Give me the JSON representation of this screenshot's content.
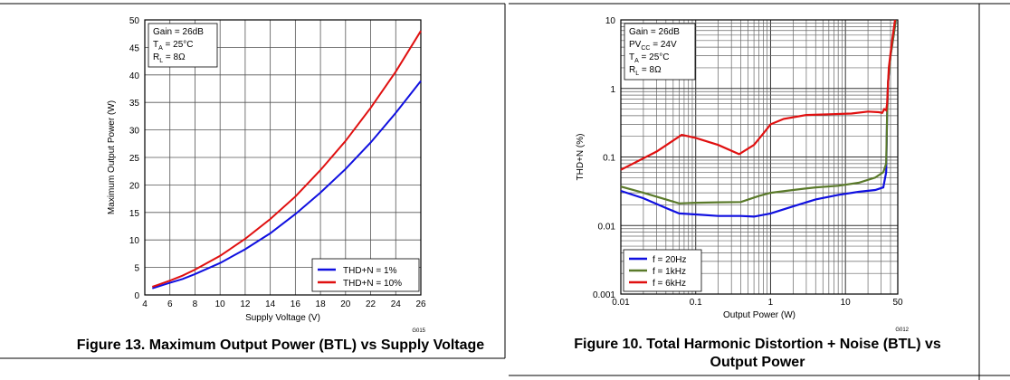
{
  "chart_data": [
    {
      "type": "line",
      "xlabel": "Supply Voltage (V)",
      "ylabel": "Maximum Output Power (W)",
      "xlim": [
        4,
        26
      ],
      "ylim": [
        0,
        50
      ],
      "xticks": [
        4,
        6,
        8,
        10,
        12,
        14,
        16,
        18,
        20,
        22,
        24,
        26
      ],
      "yticks": [
        0,
        5,
        10,
        15,
        20,
        25,
        30,
        35,
        40,
        45,
        50
      ],
      "grid": true,
      "legend_position": "bottom-right",
      "conditions": [
        "Gain = 26dB",
        "T_A = 25°C",
        "R_L = 8Ω"
      ],
      "code": "G015",
      "series": [
        {
          "name": "THD+N = 1%",
          "color": "#1010e0",
          "points": [
            [
              4.6,
              1.2
            ],
            [
              5,
              1.5
            ],
            [
              6,
              2.2
            ],
            [
              7,
              2.9
            ],
            [
              8,
              3.8
            ],
            [
              10,
              5.8
            ],
            [
              12,
              8.3
            ],
            [
              14,
              11.2
            ],
            [
              16,
              14.7
            ],
            [
              18,
              18.6
            ],
            [
              20,
              22.9
            ],
            [
              22,
              27.7
            ],
            [
              24,
              33.1
            ],
            [
              26,
              38.9
            ]
          ]
        },
        {
          "name": "THD+N = 10%",
          "color": "#e01010",
          "points": [
            [
              4.6,
              1.5
            ],
            [
              5,
              1.8
            ],
            [
              6,
              2.6
            ],
            [
              7,
              3.5
            ],
            [
              8,
              4.6
            ],
            [
              10,
              7.1
            ],
            [
              12,
              10.2
            ],
            [
              14,
              13.8
            ],
            [
              16,
              17.9
            ],
            [
              18,
              22.7
            ],
            [
              20,
              28.0
            ],
            [
              22,
              34.0
            ],
            [
              24,
              40.6
            ],
            [
              26,
              48.0
            ]
          ]
        }
      ]
    },
    {
      "type": "line",
      "xlabel": "Output Power (W)",
      "ylabel": "THD+N (%)",
      "xscale": "log",
      "yscale": "log",
      "xlim": [
        0.01,
        50
      ],
      "ylim": [
        0.001,
        10
      ],
      "xtick_labels": [
        "0.01",
        "0.1",
        "1",
        "10",
        "50"
      ],
      "xtick_values": [
        0.01,
        0.1,
        1,
        10,
        50
      ],
      "ytick_labels": [
        "0.001",
        "0.01",
        "0.1",
        "1",
        "10"
      ],
      "ytick_values": [
        0.001,
        0.01,
        0.1,
        1,
        10
      ],
      "grid": true,
      "legend_position": "bottom-left",
      "conditions": [
        "Gain = 26dB",
        "PV_CC = 24V",
        "T_A = 25°C",
        "R_L = 8Ω"
      ],
      "code": "G012",
      "series": [
        {
          "name": "f = 20Hz",
          "color": "#1010e0",
          "points": [
            [
              0.01,
              0.032
            ],
            [
              0.02,
              0.025
            ],
            [
              0.04,
              0.018
            ],
            [
              0.06,
              0.015
            ],
            [
              0.1,
              0.0145
            ],
            [
              0.2,
              0.0138
            ],
            [
              0.4,
              0.0138
            ],
            [
              0.6,
              0.0135
            ],
            [
              1,
              0.015
            ],
            [
              2,
              0.019
            ],
            [
              4,
              0.024
            ],
            [
              8,
              0.028
            ],
            [
              15,
              0.031
            ],
            [
              25,
              0.033
            ],
            [
              32,
              0.036
            ],
            [
              35,
              0.06
            ],
            [
              36,
              0.4
            ],
            [
              37,
              1.2
            ],
            [
              40,
              3.0
            ],
            [
              45,
              7.0
            ],
            [
              47,
              10.0
            ]
          ]
        },
        {
          "name": "f = 1kHz",
          "color": "#5a7a2a",
          "points": [
            [
              0.01,
              0.037
            ],
            [
              0.02,
              0.03
            ],
            [
              0.04,
              0.024
            ],
            [
              0.06,
              0.021
            ],
            [
              0.1,
              0.0215
            ],
            [
              0.2,
              0.0218
            ],
            [
              0.4,
              0.022
            ],
            [
              0.7,
              0.027
            ],
            [
              1,
              0.03
            ],
            [
              2,
              0.033
            ],
            [
              4,
              0.036
            ],
            [
              8,
              0.038
            ],
            [
              15,
              0.042
            ],
            [
              25,
              0.05
            ],
            [
              32,
              0.06
            ],
            [
              35,
              0.08
            ],
            [
              36,
              0.4
            ],
            [
              37,
              1.2
            ],
            [
              40,
              3.0
            ],
            [
              45,
              7.0
            ],
            [
              47,
              10.0
            ]
          ]
        },
        {
          "name": "f = 6kHz",
          "color": "#e01010",
          "points": [
            [
              0.01,
              0.065
            ],
            [
              0.03,
              0.12
            ],
            [
              0.065,
              0.21
            ],
            [
              0.1,
              0.19
            ],
            [
              0.2,
              0.15
            ],
            [
              0.38,
              0.11
            ],
            [
              0.6,
              0.15
            ],
            [
              0.8,
              0.22
            ],
            [
              1,
              0.3
            ],
            [
              1.5,
              0.36
            ],
            [
              3,
              0.41
            ],
            [
              6,
              0.42
            ],
            [
              12,
              0.43
            ],
            [
              20,
              0.46
            ],
            [
              28,
              0.45
            ],
            [
              31,
              0.44
            ],
            [
              33,
              0.5
            ],
            [
              35,
              0.48
            ],
            [
              36,
              0.6
            ],
            [
              38,
              2.0
            ],
            [
              42,
              5.0
            ],
            [
              46,
              10.0
            ]
          ]
        }
      ]
    }
  ],
  "captions": {
    "left": "Figure 13. Maximum Output Power (BTL) vs Supply Voltage",
    "right": "Figure 10. Total Harmonic Distortion + Noise (BTL) vs Output Power"
  }
}
